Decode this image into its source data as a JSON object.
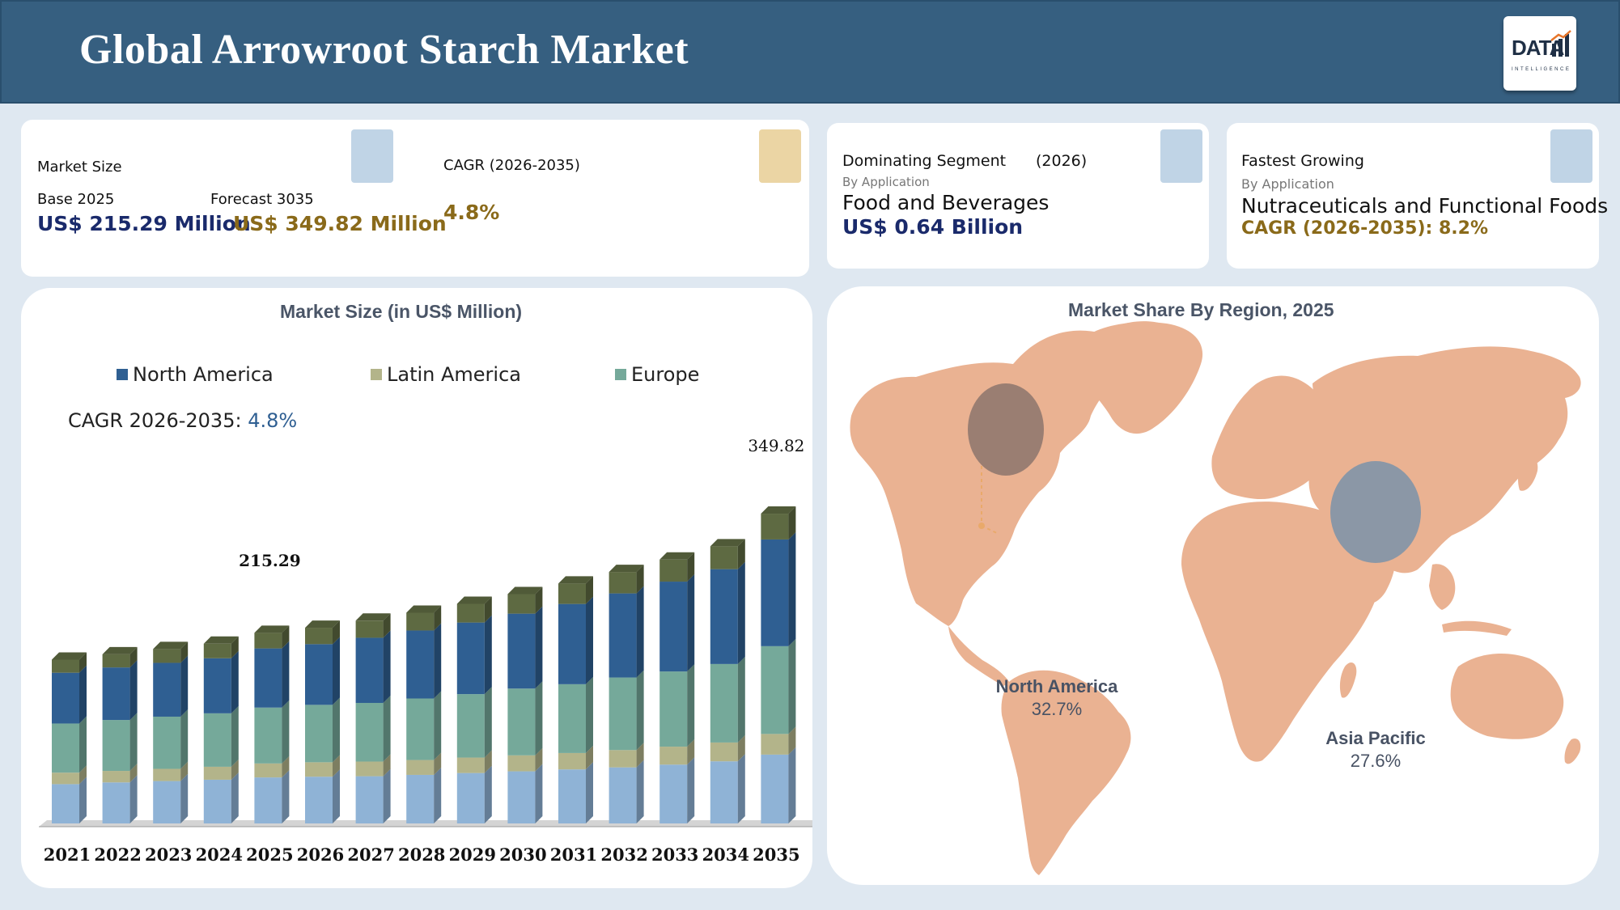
{
  "header": {
    "title": "Global Arrowroot Starch Market"
  },
  "logo": {
    "text": "DATA",
    "subtext": "INTELLIGENCE"
  },
  "kpi": {
    "market_size": {
      "label": "Market Size",
      "base_label": "Base 2025",
      "forecast_label": "Forecast 3035",
      "base_value": "US$ 215.29 Million",
      "forecast_value": "US$ 349.82 Million"
    },
    "cagr": {
      "label": "CAGR (2026-2035)",
      "value": "4.8%"
    },
    "dominating": {
      "label": "Dominating Segment",
      "year": "(2026)",
      "by": "By Application",
      "segment": "Food and Beverages",
      "value": "US$ 0.64 Billion"
    },
    "fastest": {
      "label": "Fastest Growing",
      "by": "By Application",
      "segment": "Nutraceuticals and Functional Foods",
      "cagr": "CAGR (2026-2035): 8.2%"
    }
  },
  "colors": {
    "north_america": "#2f5f92",
    "latin_america": "#b3b48a",
    "europe": "#75a99a",
    "bottom": "#8fb3d6",
    "top": "#5e6a42",
    "map": "#eab292",
    "bubble_na": "#9a7e72",
    "bubble_ap": "#8b97a6"
  },
  "chart_data": [
    {
      "type": "bar",
      "title": "Market Size (in US$ Million)",
      "legend": [
        "North America",
        "Latin America",
        "Europe"
      ],
      "legend_position": "top",
      "cagr_label": "CAGR 2026-2035:",
      "cagr_value": "4.8%",
      "categories": [
        "2021",
        "2022",
        "2023",
        "2024",
        "2025",
        "2026",
        "2027",
        "2028",
        "2029",
        "2030",
        "2031",
        "2032",
        "2033",
        "2034",
        "2035"
      ],
      "totals": [
        185,
        191,
        197,
        203,
        215.29,
        221,
        229,
        238,
        248,
        259,
        271,
        284,
        298,
        313,
        349.82
      ],
      "labels": {
        "2025": "215.29",
        "2035": "349.82"
      },
      "series": [
        {
          "name": "base",
          "values": [
            24,
            25,
            26,
            27,
            28,
            28.5,
            29,
            30,
            31,
            32,
            33,
            34,
            36,
            38,
            40
          ]
        },
        {
          "name": "Latin America",
          "values": [
            7,
            7,
            7.5,
            8,
            8.5,
            8.8,
            9,
            9.2,
            9.5,
            9.8,
            10,
            10.5,
            11,
            11.5,
            12
          ]
        },
        {
          "name": "Europe",
          "values": [
            30,
            31,
            32,
            33,
            34,
            35,
            36,
            38,
            39,
            41,
            42,
            44,
            46,
            48,
            51
          ]
        },
        {
          "name": "North America",
          "values": [
            31,
            32,
            33,
            34,
            36,
            37,
            40,
            42,
            44,
            46,
            49,
            51,
            55,
            58,
            62
          ]
        },
        {
          "name": "top",
          "values": [
            8,
            8,
            8.5,
            9,
            9.5,
            10,
            10.5,
            11,
            11.5,
            12,
            12.5,
            13,
            13.5,
            14,
            15
          ]
        }
      ]
    },
    {
      "type": "map",
      "title": "Market Share By Region, 2025",
      "regions": [
        {
          "name": "North America",
          "share": "32.7%"
        },
        {
          "name": "Asia Pacific",
          "share": "27.6%"
        }
      ]
    }
  ]
}
